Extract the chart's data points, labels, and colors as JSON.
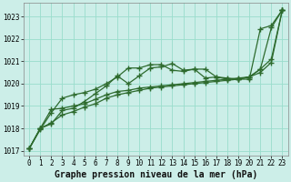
{
  "title": "Graphe pression niveau de la mer (hPa)",
  "xlabel": "Graphe pression niveau de la mer (hPa)",
  "background_color": "#cceee8",
  "grid_color": "#99ddcc",
  "line_color": "#2d6a2d",
  "ylim": [
    1016.8,
    1023.6
  ],
  "xlim": [
    -0.5,
    23.5
  ],
  "yticks": [
    1017,
    1018,
    1019,
    1020,
    1021,
    1022,
    1023
  ],
  "xticks": [
    0,
    1,
    2,
    3,
    4,
    5,
    6,
    7,
    8,
    9,
    10,
    11,
    12,
    13,
    14,
    15,
    16,
    17,
    18,
    19,
    20,
    21,
    22,
    23
  ],
  "series": [
    [
      1017.1,
      1017.95,
      1018.7,
      1019.35,
      1019.5,
      1019.6,
      1019.75,
      1020.0,
      1020.3,
      1020.7,
      1020.7,
      1020.85,
      1020.85,
      1020.6,
      1020.55,
      1020.65,
      1020.25,
      1020.3,
      1020.2,
      1020.2,
      1020.3,
      1020.65,
      1022.5,
      1023.3
    ],
    [
      1017.1,
      1018.0,
      1018.85,
      1018.9,
      1019.0,
      1019.1,
      1019.3,
      1019.5,
      1019.65,
      1019.7,
      1019.8,
      1019.85,
      1019.9,
      1019.95,
      1020.0,
      1020.05,
      1020.1,
      1020.15,
      1020.2,
      1020.25,
      1020.3,
      1020.65,
      1021.1,
      1023.3
    ],
    [
      1017.1,
      1018.0,
      1018.25,
      1018.6,
      1018.75,
      1018.95,
      1019.1,
      1019.35,
      1019.5,
      1019.6,
      1019.7,
      1019.8,
      1019.85,
      1019.9,
      1019.95,
      1020.0,
      1020.05,
      1020.1,
      1020.15,
      1020.2,
      1020.3,
      1020.5,
      1020.95,
      1023.3
    ],
    [
      1017.1,
      1018.0,
      1018.2,
      1018.8,
      1018.9,
      1019.2,
      1019.55,
      1019.9,
      1020.35,
      1020.0,
      1020.35,
      1020.7,
      1020.75,
      1020.9,
      1020.6,
      1020.65,
      1020.65,
      1020.3,
      1020.25,
      1020.2,
      1020.2,
      1022.45,
      1022.6,
      1023.3
    ]
  ],
  "marker": "+",
  "markersize": 4.0,
  "markeredgewidth": 1.0,
  "linewidth": 0.9,
  "label_fontsize": 7,
  "tick_fontsize": 5.5
}
